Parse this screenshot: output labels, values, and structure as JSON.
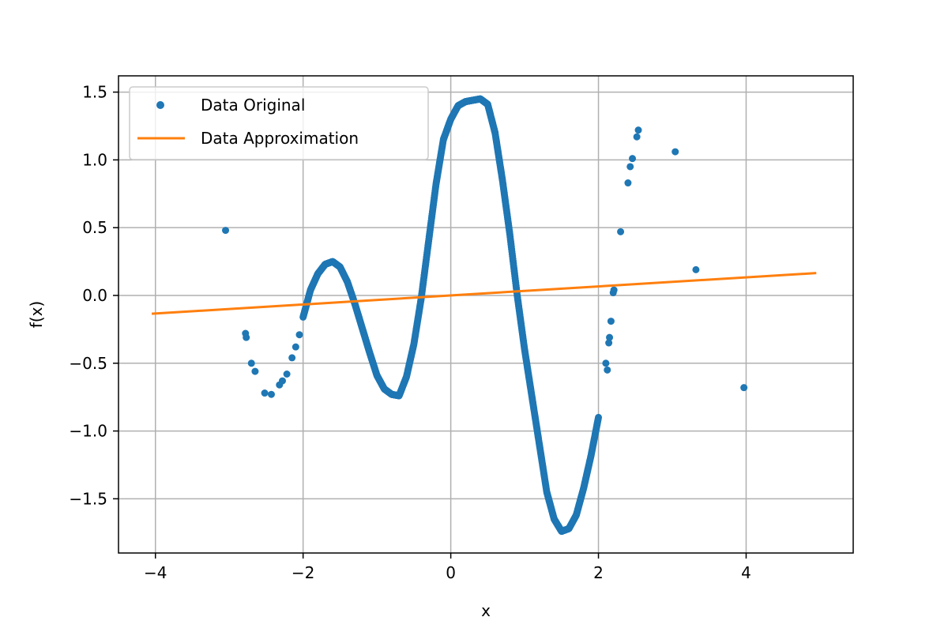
{
  "chart_data": {
    "type": "scatter",
    "xlabel": "x",
    "ylabel": "f(x)",
    "xlim": [
      -4.5,
      5.45
    ],
    "ylim": [
      -1.9,
      1.62
    ],
    "x_ticks": [
      -4,
      -2,
      0,
      2,
      4
    ],
    "x_tick_labels": [
      "−4",
      "−2",
      "0",
      "2",
      "4"
    ],
    "y_ticks": [
      -1.5,
      -1.0,
      -0.5,
      0.0,
      0.5,
      1.0,
      1.5
    ],
    "y_tick_labels": [
      "−1.5",
      "−1.0",
      "−0.5",
      "0.0",
      "0.5",
      "1.0",
      "1.5"
    ],
    "grid": true,
    "legend": {
      "placement": "top-left"
    },
    "colors": {
      "original": "#1f77b4",
      "approximation": "#ff7f0e"
    },
    "series": [
      {
        "name": "Data Original",
        "kind": "scatter",
        "dense_curve": {
          "x_start": -2.0,
          "x_end": 2.0,
          "step": 0.004,
          "x": [
            -2.0,
            -1.9,
            -1.8,
            -1.7,
            -1.6,
            -1.5,
            -1.4,
            -1.3,
            -1.2,
            -1.1,
            -1.0,
            -0.9,
            -0.8,
            -0.7,
            -0.6,
            -0.5,
            -0.4,
            -0.3,
            -0.2,
            -0.1,
            0.0,
            0.1,
            0.2,
            0.3,
            0.4,
            0.5,
            0.6,
            0.7,
            0.8,
            0.9,
            1.0,
            1.1,
            1.2,
            1.3,
            1.4,
            1.5,
            1.6,
            1.7,
            1.8,
            1.9,
            2.0
          ],
          "y": [
            -0.16,
            0.04,
            0.16,
            0.23,
            0.25,
            0.21,
            0.1,
            -0.06,
            -0.24,
            -0.42,
            -0.59,
            -0.69,
            -0.73,
            -0.74,
            -0.6,
            -0.36,
            -0.02,
            0.4,
            0.82,
            1.15,
            1.3,
            1.4,
            1.43,
            1.44,
            1.45,
            1.41,
            1.2,
            0.85,
            0.45,
            0.0,
            -0.4,
            -0.75,
            -1.1,
            -1.45,
            -1.65,
            -1.74,
            -1.72,
            -1.62,
            -1.42,
            -1.18,
            -0.9
          ]
        },
        "points": [
          {
            "x": -3.05,
            "y": 0.48
          },
          {
            "x": -2.78,
            "y": -0.28
          },
          {
            "x": -2.77,
            "y": -0.31
          },
          {
            "x": -2.7,
            "y": -0.5
          },
          {
            "x": -2.65,
            "y": -0.56
          },
          {
            "x": -2.52,
            "y": -0.72
          },
          {
            "x": -2.43,
            "y": -0.73
          },
          {
            "x": -2.32,
            "y": -0.66
          },
          {
            "x": -2.28,
            "y": -0.63
          },
          {
            "x": -2.22,
            "y": -0.58
          },
          {
            "x": -2.15,
            "y": -0.46
          },
          {
            "x": -2.1,
            "y": -0.38
          },
          {
            "x": -2.05,
            "y": -0.29
          },
          {
            "x": 2.1,
            "y": -0.5
          },
          {
            "x": 2.12,
            "y": -0.55
          },
          {
            "x": 2.14,
            "y": -0.35
          },
          {
            "x": 2.15,
            "y": -0.31
          },
          {
            "x": 2.17,
            "y": -0.19
          },
          {
            "x": 2.2,
            "y": 0.02
          },
          {
            "x": 2.21,
            "y": 0.04
          },
          {
            "x": 2.3,
            "y": 0.47
          },
          {
            "x": 2.4,
            "y": 0.83
          },
          {
            "x": 2.43,
            "y": 0.95
          },
          {
            "x": 2.46,
            "y": 1.01
          },
          {
            "x": 2.52,
            "y": 1.17
          },
          {
            "x": 2.54,
            "y": 1.22
          },
          {
            "x": 3.04,
            "y": 1.06
          },
          {
            "x": 3.32,
            "y": 0.19
          },
          {
            "x": 3.97,
            "y": -0.68
          }
        ]
      },
      {
        "name": "Data Approximation",
        "kind": "line",
        "x": [
          -4.05,
          4.95
        ],
        "y": [
          -0.135,
          0.165
        ]
      }
    ]
  }
}
